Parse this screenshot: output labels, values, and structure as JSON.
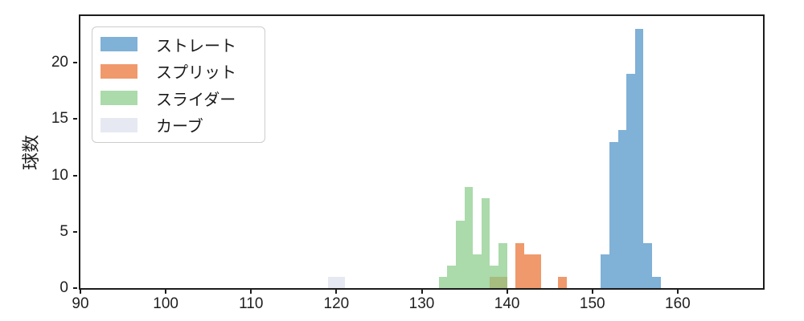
{
  "figure": {
    "ylabel": "球数",
    "colors": {
      "spine": "#1c1c1c",
      "tick_text": "#1f1f1f",
      "legend_border": "#cccccc",
      "legend_bg": "#ffffff",
      "blend_green_over_orange": "#a8b06e"
    }
  },
  "legend": {
    "position": "upper-left",
    "items": [
      {
        "label": "ストレート",
        "swatch_color": "rgba(74,144,196,0.7)"
      },
      {
        "label": "スプリット",
        "swatch_color": "rgba(233,109,45,0.7)"
      },
      {
        "label": "スライダー",
        "swatch_color": "rgba(135,202,135,0.7)"
      },
      {
        "label": "カーブ",
        "swatch_color": "rgba(219,222,236,0.7)"
      }
    ]
  },
  "chart_data": {
    "type": "bar",
    "subtype": "overlapping-histogram",
    "title": "",
    "xlabel": "",
    "ylabel": "球数",
    "xlim": [
      90,
      170
    ],
    "ylim": [
      0,
      24.15
    ],
    "x_ticks": [
      90,
      100,
      110,
      120,
      130,
      140,
      150,
      160
    ],
    "y_ticks": [
      0,
      5,
      10,
      15,
      20
    ],
    "bin_width": 1,
    "grid": false,
    "legend_position": "upper left",
    "series": [
      {
        "name": "ストレート",
        "fill": "rgba(74,144,196,0.7)",
        "flat_color": "#7fb0d5",
        "bins": [
          {
            "start": 151,
            "count": 3
          },
          {
            "start": 152,
            "count": 13
          },
          {
            "start": 153,
            "count": 14
          },
          {
            "start": 154,
            "count": 19
          },
          {
            "start": 155,
            "count": 23
          },
          {
            "start": 156,
            "count": 4
          },
          {
            "start": 157,
            "count": 1
          }
        ]
      },
      {
        "name": "スプリット",
        "fill": "rgba(233,109,45,0.7)",
        "flat_color": "#f0996c",
        "bins": [
          {
            "start": 138,
            "count": 1
          },
          {
            "start": 139,
            "count": 1
          },
          {
            "start": 141,
            "count": 4
          },
          {
            "start": 142,
            "count": 3
          },
          {
            "start": 143,
            "count": 3
          },
          {
            "start": 146,
            "count": 1
          }
        ]
      },
      {
        "name": "スライダー",
        "fill": "rgba(135,202,135,0.7)",
        "flat_color": "#abdaab",
        "bins": [
          {
            "start": 132,
            "count": 1
          },
          {
            "start": 133,
            "count": 2
          },
          {
            "start": 134,
            "count": 6
          },
          {
            "start": 135,
            "count": 9
          },
          {
            "start": 136,
            "count": 3
          },
          {
            "start": 137,
            "count": 8
          },
          {
            "start": 138,
            "count": 2
          },
          {
            "start": 139,
            "count": 4
          }
        ]
      },
      {
        "name": "カーブ",
        "fill": "rgba(219,222,236,0.7)",
        "flat_color": "#e6e8f2",
        "bins": [
          {
            "start": 119,
            "count": 1
          },
          {
            "start": 120,
            "count": 1
          }
        ]
      }
    ]
  }
}
